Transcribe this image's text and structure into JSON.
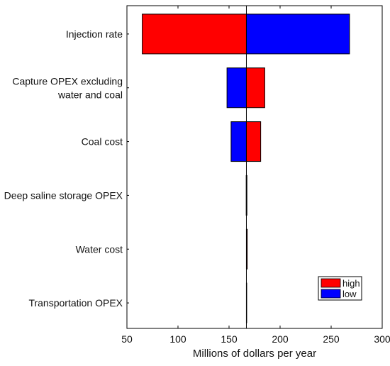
{
  "chart_data": {
    "type": "bar",
    "orientation": "horizontal",
    "title": "",
    "xlabel": "Millions of dollars per year",
    "ylabel": "",
    "xlim": [
      50,
      300
    ],
    "xticks": [
      50,
      100,
      150,
      200,
      250,
      300
    ],
    "baseline": 167,
    "categories": [
      [
        "Injection rate"
      ],
      [
        "Capture OPEX excluding",
        "water and coal"
      ],
      [
        "Coal cost"
      ],
      [
        "Deep saline storage OPEX"
      ],
      [
        "Water cost"
      ],
      [
        "Transportation OPEX"
      ]
    ],
    "series": [
      {
        "name": "high",
        "color": "#ff0000",
        "values": [
          65,
          185,
          181,
          167.5,
          167.8,
          167.3
        ]
      },
      {
        "name": "low",
        "color": "#0000ff",
        "values": [
          268,
          148,
          152,
          166.8,
          167,
          167
        ]
      }
    ],
    "legend": {
      "position": "bottom-right",
      "entries": [
        "high",
        "low"
      ]
    },
    "grid": false
  }
}
